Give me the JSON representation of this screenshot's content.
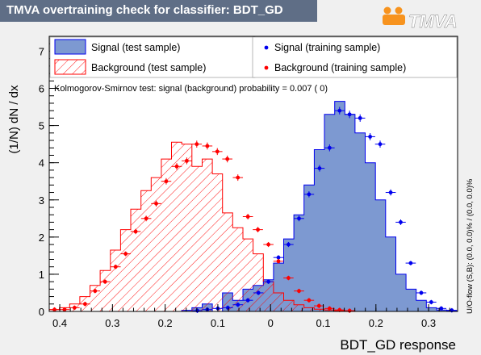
{
  "header": {
    "title": "TMVA overtraining check for classifier: BDT_GD",
    "logo_text": "TMVA"
  },
  "colors": {
    "signal_fill": "#7d99d1",
    "signal_line": "#0000ee",
    "background_hatch": "#ff0000",
    "title_bg": "#5f6e86",
    "logo_orange": "#f7931e"
  },
  "chart_data": {
    "type": "histogram",
    "title": "TMVA overtraining check for classifier: BDT_GD",
    "xlabel": "BDT_GD response",
    "ylabel": "(1/N) dN / dx",
    "xlim": [
      -0.42,
      0.355
    ],
    "ylim": [
      0,
      7.4
    ],
    "x_ticks": [
      -0.4,
      -0.3,
      -0.2,
      -0.1,
      0,
      0.1,
      0.2,
      0.3
    ],
    "x_tick_labels": [
      "0.4",
      "0.3",
      "0.2",
      "0.1",
      "0",
      "0.1",
      "0.2",
      "0.3"
    ],
    "y_ticks": [
      0,
      1,
      2,
      3,
      4,
      5,
      6,
      7
    ],
    "y_tick_labels": [
      "0",
      "1",
      "2",
      "3",
      "4",
      "5",
      "6",
      "7"
    ],
    "ks_text": "Kolmogorov-Smirnov test: signal (background) probability = 0.007 (    0)",
    "side_text": "U/O-flow (S,B): (0.0, 0.0)% / (0.0, 0.0)%",
    "legend": [
      {
        "label": "Signal (test sample)",
        "style": "filled"
      },
      {
        "label": "Background (test sample)",
        "style": "hatched"
      },
      {
        "label": "Signal (training sample)",
        "style": "blue-marker"
      },
      {
        "label": "Background (training sample)",
        "style": "red-marker"
      }
    ],
    "bin_edges": [
      -0.42,
      -0.4007,
      -0.3813,
      -0.362,
      -0.3426,
      -0.3233,
      -0.3039,
      -0.2846,
      -0.2653,
      -0.2459,
      -0.2266,
      -0.2072,
      -0.1879,
      -0.1685,
      -0.1492,
      -0.1298,
      -0.1105,
      -0.0911,
      -0.0718,
      -0.0524,
      -0.0331,
      -0.0137,
      0.0056,
      0.0249,
      0.0443,
      0.0636,
      0.083,
      0.1023,
      0.1217,
      0.141,
      0.1604,
      0.1797,
      0.1991,
      0.2184,
      0.2378,
      0.2571,
      0.2765,
      0.2958,
      0.3152,
      0.3345,
      0.355
    ],
    "series": [
      {
        "name": "Signal (test sample)",
        "kind": "filled-histogram",
        "values": [
          0,
          0,
          0,
          0,
          0,
          0,
          0,
          0,
          0,
          0,
          0,
          0,
          0,
          0.03,
          0.1,
          0.2,
          0,
          0.5,
          0.3,
          0.6,
          0.7,
          0.85,
          1.3,
          1.95,
          2.6,
          3.4,
          4.35,
          5.3,
          5.65,
          5.3,
          4.8,
          4.0,
          3.0,
          2.0,
          1.0,
          0.6,
          0.3,
          0.1,
          0.04,
          0.01
        ]
      },
      {
        "name": "Background (test sample)",
        "kind": "hatched-histogram",
        "values": [
          0.05,
          0.1,
          0.2,
          0.4,
          0.7,
          1.1,
          1.65,
          2.2,
          2.75,
          3.25,
          3.6,
          4.1,
          4.55,
          4.5,
          3.9,
          4.1,
          3.7,
          2.65,
          2.25,
          1.95,
          1.55,
          0.8,
          0.5,
          0.3,
          0.18,
          0.1,
          0.06,
          0.04,
          0.02,
          0.01,
          0,
          0,
          0,
          0,
          0,
          0,
          0,
          0,
          0,
          0
        ]
      },
      {
        "name": "Signal (training sample)",
        "kind": "markers",
        "points": [
          [
            -0.139,
            0.02
          ],
          [
            -0.12,
            0.05
          ],
          [
            -0.1,
            0.08
          ],
          [
            -0.081,
            0.1
          ],
          [
            -0.062,
            0.18
          ],
          [
            -0.043,
            0.3
          ],
          [
            -0.023,
            0.5
          ],
          [
            -0.004,
            0.8
          ],
          [
            0.015,
            1.45
          ],
          [
            0.034,
            1.8
          ],
          [
            0.054,
            2.5
          ],
          [
            0.073,
            3.15
          ],
          [
            0.093,
            3.85
          ],
          [
            0.112,
            4.4
          ],
          [
            0.131,
            5.4
          ],
          [
            0.15,
            5.3
          ],
          [
            0.17,
            5.2
          ],
          [
            0.189,
            4.7
          ],
          [
            0.208,
            4.5
          ],
          [
            0.228,
            3.2
          ],
          [
            0.247,
            2.4
          ],
          [
            0.266,
            1.3
          ],
          [
            0.286,
            0.5
          ],
          [
            0.305,
            0.25
          ],
          [
            0.324,
            0.08
          ],
          [
            0.344,
            0.03
          ]
        ]
      },
      {
        "name": "Background (training sample)",
        "kind": "markers",
        "points": [
          [
            -0.41,
            0.05
          ],
          [
            -0.391,
            0.05
          ],
          [
            -0.372,
            0.1
          ],
          [
            -0.352,
            0.2
          ],
          [
            -0.333,
            0.55
          ],
          [
            -0.314,
            0.8
          ],
          [
            -0.294,
            1.2
          ],
          [
            -0.275,
            1.55
          ],
          [
            -0.256,
            2.15
          ],
          [
            -0.236,
            2.5
          ],
          [
            -0.217,
            2.9
          ],
          [
            -0.198,
            3.5
          ],
          [
            -0.178,
            3.9
          ],
          [
            -0.159,
            4.05
          ],
          [
            -0.14,
            4.5
          ],
          [
            -0.12,
            4.45
          ],
          [
            -0.101,
            4.3
          ],
          [
            -0.082,
            4.1
          ],
          [
            -0.062,
            3.6
          ],
          [
            -0.043,
            2.55
          ],
          [
            -0.024,
            2.2
          ],
          [
            -0.004,
            1.8
          ],
          [
            0.015,
            1.35
          ],
          [
            0.034,
            0.9
          ],
          [
            0.054,
            0.55
          ],
          [
            0.073,
            0.3
          ],
          [
            0.092,
            0.15
          ],
          [
            0.112,
            0.08
          ],
          [
            0.131,
            0.04
          ],
          [
            0.15,
            0.02
          ]
        ]
      }
    ]
  }
}
